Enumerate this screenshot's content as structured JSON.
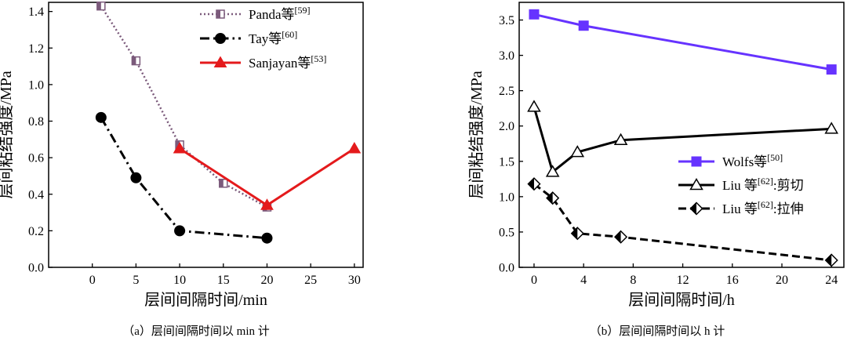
{
  "chart_data": [
    {
      "type": "line",
      "xlabel": "层间间隔时间/min",
      "ylabel": "层间粘结强度/MPa",
      "caption": "（a）层间间隔时间以 min 计",
      "xlim": [
        -5,
        31
      ],
      "ylim": [
        0,
        1.45
      ],
      "xticks": [
        0,
        5,
        10,
        15,
        20,
        25,
        30
      ],
      "yticks": [
        0.0,
        0.2,
        0.4,
        0.6,
        0.8,
        1.0,
        1.2,
        1.4
      ],
      "grid": false,
      "legend_position": "top-right",
      "series": [
        {
          "name": "Panda等[59]",
          "legend_base": "Panda等",
          "legend_ref": "[59]",
          "color": "#7b5a7b",
          "line": "dotted",
          "marker": "half-square",
          "x": [
            1,
            5,
            10,
            15,
            20
          ],
          "y": [
            1.43,
            1.13,
            0.67,
            0.46,
            0.33
          ]
        },
        {
          "name": "Tay等[60]",
          "legend_base": "Tay等",
          "legend_ref": "[60]",
          "color": "#000000",
          "line": "dashdot",
          "marker": "circle",
          "x": [
            1,
            5,
            10,
            20
          ],
          "y": [
            0.82,
            0.49,
            0.2,
            0.16
          ]
        },
        {
          "name": "Sanjayan等[53]",
          "legend_base": "Sanjayan等",
          "legend_ref": "[53]",
          "color": "#e41a1c",
          "line": "solid",
          "marker": "triangle",
          "x": [
            10,
            20,
            30
          ],
          "y": [
            0.65,
            0.34,
            0.65
          ]
        }
      ]
    },
    {
      "type": "line",
      "xlabel": "层间间隔时间/h",
      "ylabel": "层间粘结强度/MPa",
      "caption": "（b）层间间隔时间以 h 计",
      "xlim": [
        -1.2,
        25
      ],
      "ylim": [
        0,
        3.75
      ],
      "xticks": [
        0,
        4,
        8,
        12,
        16,
        20,
        24
      ],
      "yticks": [
        0.0,
        0.5,
        1.0,
        1.5,
        2.0,
        2.5,
        3.0,
        3.5
      ],
      "grid": false,
      "legend_position": "bottom-right",
      "series": [
        {
          "name": "Wolfs等[50]",
          "legend_base": "Wolfs等",
          "legend_ref": "[50]",
          "legend_suffix": "",
          "color": "#6633ff",
          "line": "solid",
          "marker": "square",
          "x": [
            0,
            4,
            24
          ],
          "y": [
            3.58,
            3.42,
            2.8
          ]
        },
        {
          "name": "Liu 等[62]:剪切",
          "legend_base": "Liu 等",
          "legend_ref": "[62]",
          "legend_suffix": ":剪切",
          "color": "#000000",
          "line": "solid",
          "marker": "open-triangle",
          "x": [
            0,
            1.5,
            3.5,
            7,
            24
          ],
          "y": [
            2.27,
            1.35,
            1.63,
            1.8,
            1.96
          ]
        },
        {
          "name": "Liu 等[62]:拉伸",
          "legend_base": "Liu 等",
          "legend_ref": "[62]",
          "legend_suffix": ":拉伸",
          "color": "#000000",
          "line": "dashed",
          "marker": "half-diamond",
          "x": [
            0,
            1.5,
            3.5,
            7,
            24
          ],
          "y": [
            1.18,
            0.98,
            0.48,
            0.43,
            0.1
          ]
        }
      ]
    }
  ]
}
